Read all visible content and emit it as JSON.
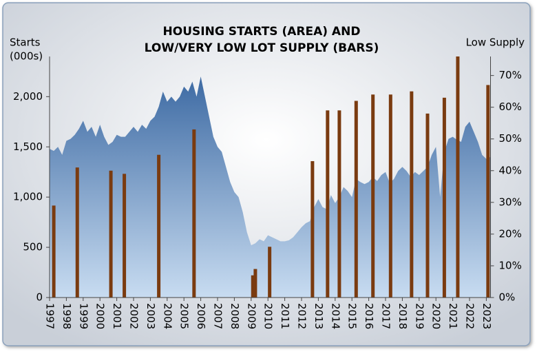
{
  "chart_data": {
    "type": "combo",
    "title": [
      "HOUSING STARTS (AREA) AND",
      "LOW/VERY LOW LOT SUPPLY (BARS)"
    ],
    "ylabel": [
      "Starts",
      "(000s)"
    ],
    "y2label": "Low Supply",
    "xlim": [
      1997,
      2023.25
    ],
    "xticks": [
      1997,
      1998,
      1999,
      2000,
      2001,
      2002,
      2003,
      2004,
      2005,
      2006,
      2007,
      2008,
      2009,
      2010,
      2011,
      2012,
      2013,
      2014,
      2015,
      2016,
      2017,
      2018,
      2019,
      2020,
      2021,
      2022,
      2023
    ],
    "ylim": [
      0,
      2400
    ],
    "yticks": [
      0,
      500,
      {
        "value": 1000,
        "label": "1,000"
      },
      {
        "value": 1500,
        "label": "1,500"
      },
      {
        "value": 2000,
        "label": "2,000"
      }
    ],
    "y2lim": [
      0,
      76
    ],
    "y2ticks": [
      {
        "value": 0,
        "label": "0%"
      },
      {
        "value": 10,
        "label": "10%"
      },
      {
        "value": 20,
        "label": "20%"
      },
      {
        "value": 30,
        "label": "30%"
      },
      {
        "value": 40,
        "label": "40%"
      },
      {
        "value": 50,
        "label": "50%"
      },
      {
        "value": 60,
        "label": "60%"
      },
      {
        "value": 70,
        "label": "70%"
      }
    ],
    "series": [
      {
        "type": "area",
        "color": "#3d6aa3",
        "x": [
          1997,
          1997.25,
          1997.5,
          1997.75,
          1998,
          1998.25,
          1998.5,
          1998.75,
          1999,
          1999.25,
          1999.5,
          1999.75,
          2000,
          2000.25,
          2000.5,
          2000.75,
          2001,
          2001.25,
          2001.5,
          2001.75,
          2002,
          2002.25,
          2002.5,
          2002.75,
          2003,
          2003.25,
          2003.5,
          2003.75,
          2004,
          2004.25,
          2004.5,
          2004.75,
          2005,
          2005.25,
          2005.5,
          2005.75,
          2006,
          2006.25,
          2006.5,
          2006.75,
          2007,
          2007.25,
          2007.5,
          2007.75,
          2008,
          2008.25,
          2008.5,
          2008.75,
          2009,
          2009.25,
          2009.5,
          2009.75,
          2010,
          2010.25,
          2010.5,
          2010.75,
          2011,
          2011.25,
          2011.5,
          2011.75,
          2012,
          2012.25,
          2012.5,
          2012.75,
          2013,
          2013.25,
          2013.5,
          2013.75,
          2014,
          2014.25,
          2014.5,
          2014.75,
          2015,
          2015.25,
          2015.5,
          2015.75,
          2016,
          2016.25,
          2016.5,
          2016.75,
          2017,
          2017.25,
          2017.5,
          2017.75,
          2018,
          2018.25,
          2018.5,
          2018.75,
          2019,
          2019.25,
          2019.5,
          2019.75,
          2020,
          2020.25,
          2020.5,
          2020.75,
          2021,
          2021.25,
          2021.5,
          2021.75,
          2022,
          2022.25,
          2022.5,
          2022.75,
          2023,
          2023.25
        ],
        "values": [
          1480,
          1460,
          1500,
          1420,
          1560,
          1580,
          1620,
          1680,
          1760,
          1650,
          1700,
          1600,
          1720,
          1600,
          1520,
          1550,
          1620,
          1600,
          1600,
          1650,
          1700,
          1650,
          1720,
          1680,
          1760,
          1800,
          1900,
          2050,
          1950,
          2000,
          1950,
          2000,
          2100,
          2050,
          2150,
          2000,
          2200,
          2000,
          1800,
          1600,
          1500,
          1450,
          1300,
          1150,
          1050,
          1000,
          850,
          650,
          520,
          540,
          580,
          560,
          620,
          600,
          580,
          560,
          560,
          570,
          600,
          650,
          700,
          740,
          760,
          900,
          980,
          900,
          880,
          1020,
          940,
          1000,
          1100,
          1060,
          1000,
          1180,
          1150,
          1130,
          1150,
          1200,
          1160,
          1220,
          1250,
          1140,
          1180,
          1260,
          1300,
          1260,
          1200,
          1250,
          1220,
          1260,
          1300,
          1420,
          1500,
          1000,
          1450,
          1580,
          1600,
          1570,
          1550,
          1700,
          1750,
          1650,
          1550,
          1420,
          1380,
          1400
        ]
      },
      {
        "type": "bar",
        "axis": "y2",
        "color": "#7a3b10",
        "x": [
          1997.25,
          1998.65,
          2000.65,
          2001.45,
          2003.5,
          2005.6,
          2009.1,
          2009.25,
          2010.1,
          2012.65,
          2013.55,
          2014.25,
          2015.25,
          2016.25,
          2017.3,
          2018.55,
          2019.5,
          2020.5,
          2021.3,
          2023.1
        ],
        "values": [
          29,
          41,
          40,
          39,
          45,
          53,
          7,
          9,
          16,
          43,
          59,
          59,
          62,
          64,
          64,
          65,
          58,
          63,
          76,
          67
        ]
      }
    ]
  }
}
